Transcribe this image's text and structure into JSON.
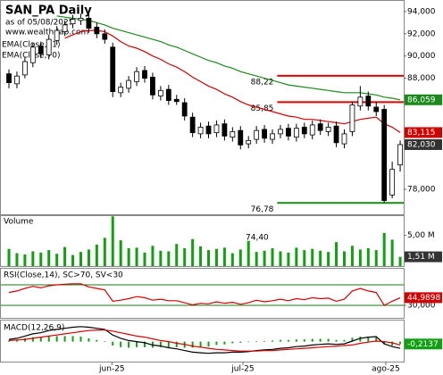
{
  "header": {
    "title": "SAN_PA Daily",
    "asof": "as of 05/08/2025",
    "site": "www.wealth-lab.com"
  },
  "chart_data": [
    {
      "type": "candlestick",
      "xlim": [
        -1.12,
        49.44
      ],
      "ylim": [
        75.76,
        94.96
      ],
      "yticks": [
        {
          "value": 94,
          "label": "94,000"
        },
        {
          "value": 92,
          "label": "92,000"
        },
        {
          "value": 90,
          "label": "90,000"
        },
        {
          "value": 88,
          "label": "88,000"
        },
        {
          "value": 78,
          "label": "78,000"
        }
      ],
      "open": [
        88.4,
        87.5,
        88.3,
        89.4,
        90.9,
        90.1,
        91.4,
        92.2,
        92.9,
        93.2,
        93.4,
        92.6,
        92.0,
        90.8,
        86.7,
        87.1,
        87.7,
        88.7,
        88.1,
        86.4,
        87.0,
        86.1,
        85.8,
        84.5,
        83.0,
        83.7,
        83.1,
        83.9,
        82.7,
        83.3,
        82.1,
        82.5,
        83.4,
        82.5,
        83.0,
        83.5,
        82.7,
        83.6,
        82.9,
        83.9,
        83.2,
        83.7,
        82.1,
        83.2,
        85.5,
        86.4,
        85.4,
        85.2,
        77.5,
        80.2
      ],
      "high": [
        88.8,
        88.6,
        89.9,
        91.2,
        91.3,
        91.9,
        92.7,
        93.2,
        93.7,
        93.8,
        93.8,
        93.0,
        92.4,
        91.2,
        87.6,
        88.2,
        89.0,
        89.1,
        88.5,
        87.3,
        87.4,
        86.5,
        86.2,
        84.9,
        84.0,
        84.1,
        84.2,
        84.3,
        83.6,
        83.7,
        82.8,
        83.7,
        83.8,
        83.4,
        83.8,
        83.9,
        83.9,
        84.0,
        84.2,
        84.3,
        84.0,
        84.1,
        83.4,
        85.9,
        87.3,
        86.8,
        85.9,
        85.6,
        80.5,
        82.4
      ],
      "low": [
        87.1,
        87.1,
        88.0,
        89.0,
        89.8,
        89.7,
        91.0,
        91.8,
        92.5,
        92.8,
        92.1,
        91.6,
        91.1,
        86.3,
        86.3,
        86.7,
        87.3,
        87.6,
        86.1,
        86.0,
        85.6,
        85.6,
        84.2,
        82.7,
        82.6,
        82.6,
        82.7,
        82.4,
        82.3,
        81.6,
        81.7,
        82.1,
        82.2,
        82.1,
        82.6,
        82.4,
        82.3,
        82.6,
        82.5,
        82.9,
        82.8,
        81.8,
        81.7,
        82.8,
        85.1,
        85.1,
        84.6,
        76.8,
        77.2,
        79.6
      ],
      "close": [
        87.6,
        88.2,
        89.5,
        90.8,
        90.2,
        91.5,
        92.3,
        92.8,
        93.3,
        93.4,
        92.5,
        92.0,
        91.5,
        86.8,
        87.2,
        87.8,
        88.6,
        88.0,
        86.5,
        86.9,
        86.0,
        85.9,
        84.6,
        83.1,
        83.6,
        83.0,
        83.8,
        82.8,
        83.2,
        82.0,
        82.4,
        83.3,
        82.6,
        83.0,
        83.4,
        82.8,
        83.5,
        83.0,
        83.8,
        83.3,
        83.6,
        82.2,
        83.0,
        85.6,
        86.3,
        85.5,
        85.0,
        77.0,
        79.8,
        82.03
      ],
      "close_label": "82,030",
      "series": [
        {
          "name": "EMA(Close,21)",
          "color": "#d40000",
          "last_label": "83,115",
          "values": [
            null,
            null,
            null,
            null,
            null,
            null,
            null,
            91.6,
            91.9,
            92.2,
            92.3,
            92.3,
            92.2,
            91.8,
            91.3,
            90.9,
            90.7,
            90.4,
            90.0,
            89.7,
            89.3,
            89.0,
            88.6,
            88.1,
            87.7,
            87.3,
            87.0,
            86.6,
            86.3,
            85.9,
            85.6,
            85.4,
            85.2,
            85.0,
            84.8,
            84.6,
            84.5,
            84.3,
            84.3,
            84.2,
            84.1,
            84.0,
            83.9,
            84.1,
            84.3,
            84.4,
            84.5,
            83.9,
            83.6,
            83.115
          ]
        },
        {
          "name": "EMA(Close,70)",
          "color": "#1a8a1a",
          "last_label": "86,059",
          "values": [
            null,
            null,
            null,
            null,
            null,
            null,
            93.6,
            93.5,
            93.4,
            93.3,
            93.2,
            93.0,
            92.8,
            92.5,
            92.3,
            92.1,
            91.9,
            91.7,
            91.5,
            91.3,
            91.0,
            90.8,
            90.5,
            90.2,
            89.9,
            89.6,
            89.4,
            89.1,
            88.9,
            88.6,
            88.4,
            88.2,
            88.0,
            87.8,
            87.6,
            87.4,
            87.3,
            87.2,
            87.1,
            87.0,
            86.9,
            86.8,
            86.7,
            86.7,
            86.7,
            86.6,
            86.5,
            86.3,
            86.2,
            86.059
          ]
        }
      ],
      "levels": [
        {
          "value": 88.22,
          "label": "88,22",
          "color": "#e00000"
        },
        {
          "value": 85.85,
          "label": "85,85",
          "color": "#e00000"
        },
        {
          "value": 76.78,
          "label": "76,78",
          "color": "#1a8a1a"
        }
      ]
    },
    {
      "type": "bar",
      "title": "Volume",
      "color": "#10a010",
      "ylim": [
        0,
        8.14
      ],
      "yticks": [
        {
          "value": 5,
          "label": "5,00 M"
        }
      ],
      "last_label": "1,51 M",
      "annotation": "74,40",
      "values": [
        2.8,
        2.1,
        1.9,
        2.4,
        2.2,
        2.6,
        2.0,
        3.1,
        1.8,
        2.3,
        2.7,
        3.5,
        4.6,
        8.1,
        4.2,
        2.9,
        3.0,
        2.2,
        3.3,
        2.5,
        2.4,
        3.6,
        2.9,
        4.4,
        3.2,
        2.6,
        2.8,
        3.0,
        2.1,
        2.7,
        4.1,
        2.3,
        2.5,
        2.9,
        2.4,
        2.2,
        3.0,
        2.6,
        2.8,
        2.5,
        2.3,
        3.9,
        2.4,
        3.3,
        2.7,
        2.9,
        2.6,
        5.4,
        4.3,
        1.51
      ]
    },
    {
      "type": "line",
      "title": "RSI(Close,14), SC>70, SV<30",
      "color": "#d40000",
      "ylim": [
        5.65,
        101.3
      ],
      "yticks": [
        {
          "value": 30,
          "label": "30,000"
        }
      ],
      "levels": [
        70,
        30
      ],
      "level_color": "#1a7a1a",
      "last_label": "44,9898",
      "values": [
        55,
        58,
        63,
        67,
        64,
        68,
        70,
        71,
        72,
        72,
        66,
        63,
        60,
        38,
        40,
        43,
        47,
        45,
        40,
        42,
        39,
        39,
        35,
        31,
        34,
        33,
        37,
        34,
        36,
        32,
        35,
        40,
        37,
        39,
        42,
        39,
        43,
        41,
        45,
        43,
        44,
        38,
        42,
        58,
        63,
        58,
        55,
        30,
        38,
        44.9898
      ]
    },
    {
      "type": "macd",
      "title": "MACD(12,26,9)",
      "ylim": [
        -1.8,
        1.9
      ],
      "last_label": "-0,2137",
      "hist_color": "#10a010",
      "macd_color": "#000000",
      "signal_color": "#d40000",
      "macd": [
        0.2,
        0.3,
        0.5,
        0.7,
        0.8,
        1.0,
        1.1,
        1.2,
        1.3,
        1.35,
        1.3,
        1.2,
        1.1,
        0.6,
        0.3,
        0.1,
        0.0,
        -0.1,
        -0.3,
        -0.4,
        -0.55,
        -0.65,
        -0.8,
        -0.95,
        -1.0,
        -1.05,
        -1.0,
        -1.0,
        -0.95,
        -0.95,
        -0.9,
        -0.8,
        -0.75,
        -0.7,
        -0.6,
        -0.55,
        -0.45,
        -0.4,
        -0.3,
        -0.25,
        -0.2,
        -0.25,
        -0.2,
        0.05,
        0.3,
        0.4,
        0.45,
        -0.2,
        -0.45,
        -0.6
      ],
      "signal": [
        0.1,
        0.15,
        0.2,
        0.3,
        0.4,
        0.5,
        0.6,
        0.7,
        0.8,
        0.9,
        1.0,
        1.05,
        1.05,
        0.95,
        0.8,
        0.65,
        0.5,
        0.4,
        0.25,
        0.1,
        0.0,
        -0.15,
        -0.25,
        -0.4,
        -0.5,
        -0.6,
        -0.7,
        -0.75,
        -0.8,
        -0.85,
        -0.85,
        -0.85,
        -0.8,
        -0.8,
        -0.75,
        -0.7,
        -0.65,
        -0.6,
        -0.55,
        -0.5,
        -0.45,
        -0.4,
        -0.35,
        -0.3,
        -0.15,
        -0.05,
        0.05,
        0.0,
        -0.1,
        -0.3
      ],
      "hist": [
        0.1,
        0.15,
        0.3,
        0.4,
        0.4,
        0.5,
        0.5,
        0.5,
        0.5,
        0.45,
        0.3,
        0.15,
        0.05,
        -0.35,
        -0.5,
        -0.55,
        -0.5,
        -0.5,
        -0.55,
        -0.5,
        -0.55,
        -0.5,
        -0.55,
        -0.55,
        -0.5,
        -0.45,
        -0.3,
        -0.25,
        -0.15,
        -0.1,
        -0.05,
        0.05,
        0.05,
        0.1,
        0.15,
        0.15,
        0.2,
        0.2,
        0.25,
        0.25,
        0.25,
        0.15,
        0.15,
        0.35,
        0.45,
        0.45,
        0.4,
        -0.2,
        -0.35,
        -0.2137
      ],
      "xticks": [
        {
          "value": 12.9,
          "label": "jun-25"
        },
        {
          "value": 29.3,
          "label": "jul-25"
        },
        {
          "value": 47.2,
          "label": "ago-25"
        }
      ]
    }
  ]
}
